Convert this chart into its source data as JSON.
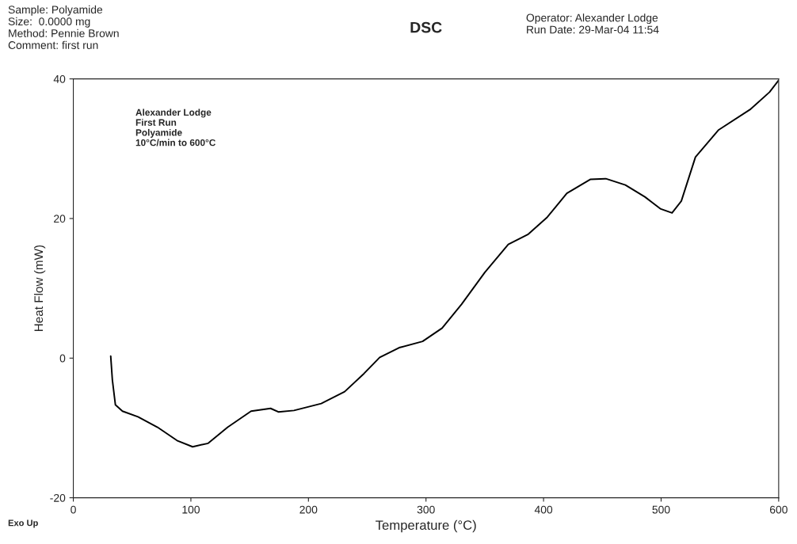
{
  "chart_data": {
    "type": "line",
    "title": "DSC",
    "xlabel": "Temperature (°C)",
    "ylabel": "Heat Flow (mW)",
    "x": [
      31.8,
      33.2,
      35.8,
      41.8,
      55,
      71.6,
      88.2,
      101.5,
      114.7,
      131.3,
      151.2,
      167.8,
      174.4,
      187.7,
      210.9,
      230.8,
      247.3,
      260.6,
      277.2,
      297.1,
      313.7,
      330.2,
      350.1,
      370,
      386.6,
      403.2,
      419.8,
      439.7,
      453,
      469.6,
      486.2,
      499.3,
      509.3,
      517.2,
      529.2,
      549,
      575.6,
      592.2,
      600
    ],
    "series": [
      {
        "color": "#000000",
        "values": [
          0.3,
          -3.1,
          -6.7,
          -7.6,
          -8.4,
          -9.9,
          -11.8,
          -12.7,
          -12.2,
          -9.9,
          -7.6,
          -7.2,
          -7.7,
          -7.5,
          -6.5,
          -4.8,
          -2.2,
          0.1,
          1.5,
          2.4,
          4.3,
          7.7,
          12.3,
          16.3,
          17.7,
          20.2,
          23.6,
          25.6,
          25.7,
          24.8,
          23.1,
          21.4,
          20.8,
          22.5,
          28.8,
          32.7,
          35.6,
          38.1,
          39.8
        ]
      }
    ],
    "xlim": [
      0,
      600
    ],
    "xticks": [
      0,
      100,
      200,
      300,
      400,
      500,
      600
    ],
    "ylim": [
      -20,
      40
    ],
    "yticks": [
      -20,
      0,
      20,
      40
    ],
    "grid": false,
    "legend": false,
    "marker": "none",
    "line_style": "solid",
    "annotations": [
      "Sample: Polyamide\nSize:  0.0000 mg\nMethod: Pennie Brown\nComment: first run",
      "Operator: Alexander Lodge\nRun Date: 29-Mar-04 11:54",
      "Alexander Lodge\nFirst Run\nPolyamide\n10°C/min to 600°C",
      "Exo Up"
    ]
  }
}
